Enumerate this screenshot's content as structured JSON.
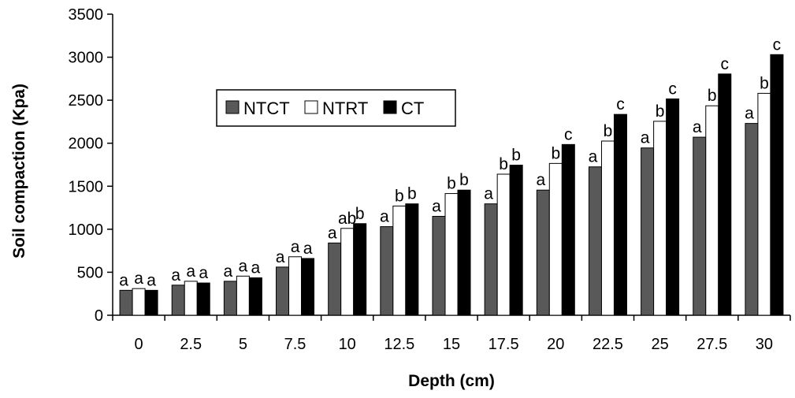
{
  "chart_data": {
    "type": "bar",
    "xlabel": "Depth (cm)",
    "ylabel": "Soil compaction (Kpa)",
    "ylim": [
      0,
      3500
    ],
    "yticks": [
      0,
      500,
      1000,
      1500,
      2000,
      2500,
      3000,
      3500
    ],
    "categories": [
      "0",
      "2.5",
      "5",
      "7.5",
      "10",
      "12.5",
      "15",
      "17.5",
      "20",
      "22.5",
      "25",
      "27.5",
      "30"
    ],
    "grid": false,
    "legend": {
      "placement": "upper-left-inside",
      "orientation": "horizontal"
    },
    "series": [
      {
        "name": "NTCT",
        "color": "#595959",
        "values": [
          290,
          350,
          395,
          560,
          840,
          1030,
          1150,
          1295,
          1455,
          1725,
          1945,
          2070,
          2230
        ],
        "labels": [
          "a",
          "a",
          "a",
          "a",
          "a",
          "a",
          "a",
          "a",
          "a",
          "a",
          "a",
          "a",
          "a"
        ]
      },
      {
        "name": "NTRT",
        "color": "#ffffff",
        "values": [
          310,
          395,
          455,
          680,
          1010,
          1270,
          1415,
          1640,
          1765,
          2025,
          2255,
          2435,
          2580
        ],
        "labels": [
          "a",
          "a",
          "a",
          "a",
          "ab",
          "b",
          "b",
          "b",
          "b",
          "b",
          "b",
          "b",
          "b"
        ]
      },
      {
        "name": "CT",
        "color": "#000000",
        "values": [
          290,
          375,
          435,
          660,
          1065,
          1295,
          1455,
          1745,
          1985,
          2335,
          2515,
          2805,
          3030
        ],
        "labels": [
          "a",
          "a",
          "a",
          "a",
          "b",
          "b",
          "b",
          "b",
          "c",
          "c",
          "c",
          "c",
          "c"
        ]
      }
    ]
  }
}
